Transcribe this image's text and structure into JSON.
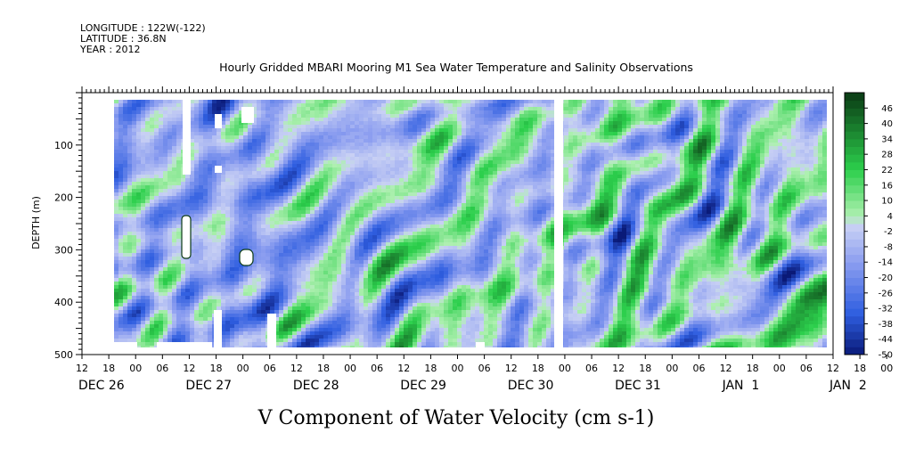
{
  "meta": {
    "longitude": "LONGITUDE : 122W(-122)",
    "latitude": "LATITUDE : 36.8N",
    "year": "YEAR : 2012"
  },
  "chart_data": {
    "type": "heatmap",
    "title": "Hourly Gridded MBARI Mooring M1 Sea Water Temperature and Salinity Observations",
    "variable_label": "V Component of Water Velocity (cm s-1)",
    "ylabel": "DEPTH (m)",
    "ylim": [
      500,
      0
    ],
    "yticks": [
      "100",
      "200",
      "300",
      "400",
      "500"
    ],
    "y_tick_values": [
      100,
      200,
      300,
      400,
      500
    ],
    "x_hour_labels": [
      "12",
      "18",
      "00",
      "06",
      "12",
      "18",
      "00",
      "06",
      "12",
      "18",
      "00",
      "06",
      "12",
      "18",
      "00",
      "06",
      "12",
      "18",
      "00",
      "06",
      "12",
      "18",
      "00",
      "06",
      "12",
      "18",
      "00",
      "06",
      "12",
      "18",
      "00",
      "06",
      "12",
      "18",
      "00",
      "06",
      "12"
    ],
    "x_date_labels": [
      "DEC 26",
      "DEC 27",
      "DEC 28",
      "DEC 29",
      "DEC 30",
      "DEC 31",
      "JAN  1",
      "JAN  2"
    ],
    "x_date_hours": [
      12,
      36,
      60,
      84,
      108,
      132,
      156,
      180
    ],
    "x_range_hours": [
      12,
      180
    ],
    "colorbar": {
      "labels": [
        "46",
        "40",
        "34",
        "28",
        "22",
        "16",
        "10",
        "4",
        "-2",
        "-8",
        "-14",
        "-20",
        "-26",
        "-32",
        "-38",
        "-44",
        "-50"
      ],
      "min": -50,
      "max": 52,
      "step": 3
    },
    "colors": {
      "negative_deep": "#0a1a78",
      "negative_mid": "#2f5ee0",
      "negative_light": "#8c9ef0",
      "near_zero": "#c8d0f4",
      "positive_light": "#aef0b0",
      "positive_mid": "#2ccf4c",
      "positive_deep": "#0a3a14"
    }
  }
}
